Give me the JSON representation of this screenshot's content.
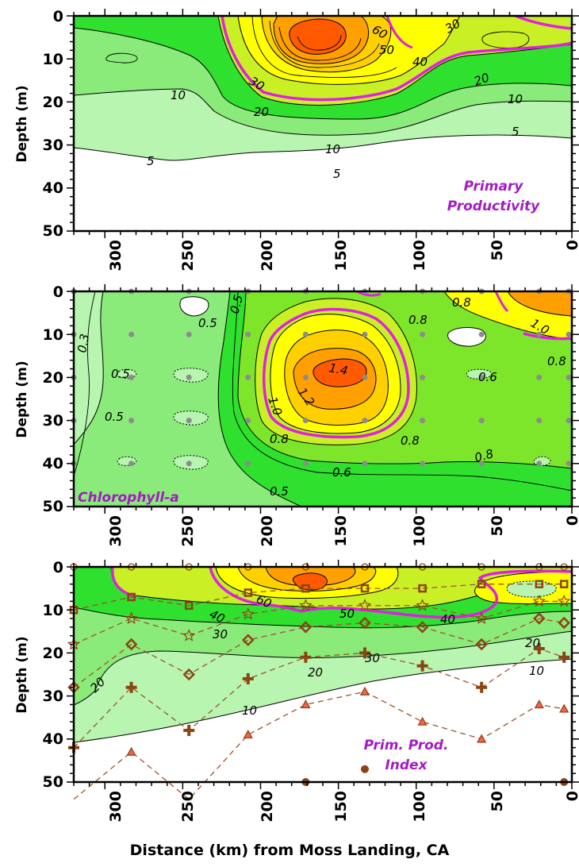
{
  "chart_data": [
    {
      "type": "contour",
      "title": "Primary Productivity",
      "xlabel": "Distance (km) from Moss Landing, CA",
      "ylabel": "Depth (m)",
      "xlim": [
        320,
        0
      ],
      "ylim": [
        50,
        0
      ],
      "x_ticks": [
        "300",
        "250",
        "200",
        "150",
        "100",
        "50",
        "0"
      ],
      "y_ticks": [
        "0",
        "10",
        "20",
        "30",
        "40",
        "50"
      ],
      "contour_labels": [
        "60",
        "50",
        "40",
        "30",
        "30",
        "20",
        "20",
        "10",
        "10",
        "10",
        "5",
        "5",
        "5"
      ],
      "highlight_contour": 30,
      "max_value_region": {
        "distance_km": 155,
        "depth_m": 6
      }
    },
    {
      "type": "contour",
      "title": "Chlorophyll-a",
      "xlabel": "Distance (km) from Moss Landing, CA",
      "ylabel": "Depth (m)",
      "xlim": [
        320,
        0
      ],
      "ylim": [
        50,
        0
      ],
      "x_ticks": [
        "300",
        "250",
        "200",
        "150",
        "100",
        "50",
        "0"
      ],
      "y_ticks": [
        "0",
        "10",
        "20",
        "30",
        "40",
        "50"
      ],
      "contour_labels": [
        "0.3",
        "0.5",
        "0.5",
        "0.5",
        "0.5",
        "1.4",
        "1.2",
        "1.0",
        "0.8",
        "0.8",
        "0.8",
        "0.8",
        "0.8",
        "1.0",
        "0.6",
        "0.6",
        "0.8",
        "0.5"
      ],
      "highlight_contour": 1.0,
      "sample_depths_m": [
        0,
        10,
        20,
        30,
        40
      ],
      "max_value_region": {
        "distance_km": 140,
        "depth_m": 20
      }
    },
    {
      "type": "contour",
      "title": "Prim. Prod. Index",
      "xlabel": "Distance (km) from Moss Landing, CA",
      "ylabel": "Depth (m)",
      "xlim": [
        320,
        0
      ],
      "ylim": [
        50,
        0
      ],
      "x_ticks": [
        "300",
        "250",
        "200",
        "150",
        "100",
        "50",
        "0"
      ],
      "y_ticks": [
        "0",
        "10",
        "20",
        "30",
        "40",
        "50"
      ],
      "contour_labels": [
        "60",
        "50",
        "40",
        "40",
        "30",
        "30",
        "20",
        "20",
        "20",
        "10",
        "10"
      ],
      "highlight_contour": 40,
      "light_depth_series": [
        {
          "marker": "circle-open",
          "points": [
            [
              320,
              0
            ],
            [
              283,
              0
            ],
            [
              246,
              0
            ],
            [
              208,
              0
            ],
            [
              171,
              0
            ],
            [
              133,
              0
            ],
            [
              96,
              0
            ],
            [
              58,
              0
            ],
            [
              21,
              0
            ],
            [
              5,
              0
            ]
          ]
        },
        {
          "marker": "square",
          "points": [
            [
              320,
              10
            ],
            [
              283,
              7
            ],
            [
              246,
              9
            ],
            [
              208,
              6
            ],
            [
              171,
              5
            ],
            [
              133,
              5
            ],
            [
              96,
              5
            ],
            [
              58,
              4
            ],
            [
              21,
              4
            ],
            [
              5,
              4
            ]
          ]
        },
        {
          "marker": "star",
          "points": [
            [
              320,
              18
            ],
            [
              283,
              12
            ],
            [
              246,
              16
            ],
            [
              208,
              11
            ],
            [
              171,
              9
            ],
            [
              133,
              9
            ],
            [
              96,
              9
            ],
            [
              58,
              12
            ],
            [
              21,
              8
            ],
            [
              5,
              8
            ]
          ]
        },
        {
          "marker": "diamond",
          "points": [
            [
              320,
              28
            ],
            [
              283,
              18
            ],
            [
              246,
              25
            ],
            [
              208,
              17
            ],
            [
              171,
              14
            ],
            [
              133,
              13
            ],
            [
              96,
              14
            ],
            [
              58,
              18
            ],
            [
              21,
              12
            ],
            [
              5,
              13
            ]
          ]
        },
        {
          "marker": "plus",
          "points": [
            [
              320,
              42
            ],
            [
              283,
              28
            ],
            [
              246,
              38
            ],
            [
              208,
              26
            ],
            [
              171,
              21
            ],
            [
              133,
              20
            ],
            [
              96,
              23
            ],
            [
              58,
              28
            ],
            [
              21,
              19
            ],
            [
              5,
              21
            ]
          ]
        },
        {
          "marker": "triangle",
          "points": [
            [
              320,
              54
            ],
            [
              283,
              43
            ],
            [
              246,
              54
            ],
            [
              208,
              39
            ],
            [
              171,
              32
            ],
            [
              133,
              29
            ],
            [
              96,
              36
            ],
            [
              58,
              40
            ],
            [
              21,
              32
            ],
            [
              5,
              33
            ]
          ]
        },
        {
          "marker": "circle-filled",
          "points": [
            [
              171,
              50
            ],
            [
              133,
              47
            ],
            [
              5,
              50
            ]
          ]
        }
      ]
    }
  ],
  "xlabel": "Distance (km) from Moss Landing, CA",
  "colors": {
    "outside": "#ffffff",
    "level_pale": "#b8f5b0",
    "level_light": "#8aeb7a",
    "level_green": "#2fe02f",
    "level_mid": "#7ee62a",
    "level_yellowgreen": "#c9f024",
    "level_yellow": "#ffff00",
    "level_gold": "#ffd000",
    "level_orange": "#ffa000",
    "level_deep": "#ff5a00",
    "highlight": "#e020e0",
    "title": "#a41ac4",
    "sample_dot": "#8c8c8c",
    "dash_line": "#a0522d",
    "marker": "#8b4513"
  }
}
